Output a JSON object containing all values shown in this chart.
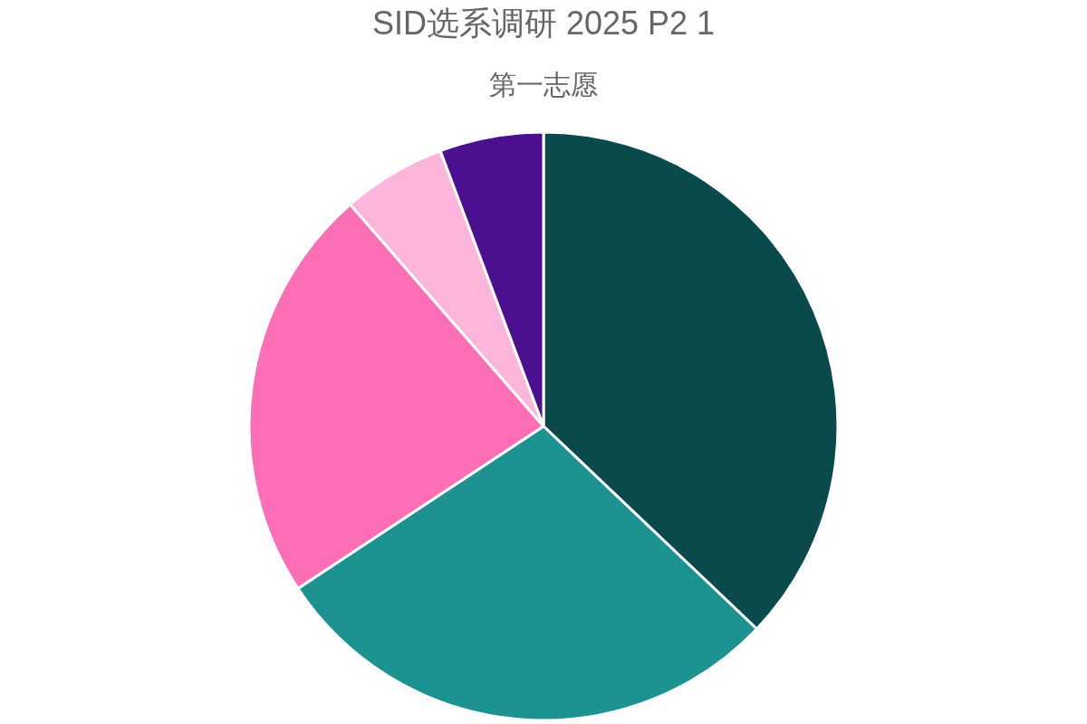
{
  "chart_data": {
    "type": "pie",
    "title": "SID选系调研 2025 P2 1",
    "subtitle": "第一志愿",
    "categories": [
      null,
      null,
      null,
      null,
      null
    ],
    "values": [
      37.1,
      28.6,
      22.9,
      5.7,
      5.7
    ],
    "colors": [
      "#0b4a4b",
      "#1c9391",
      "#fc6fb6",
      "#fdb5dc",
      "#4b0f90"
    ]
  }
}
